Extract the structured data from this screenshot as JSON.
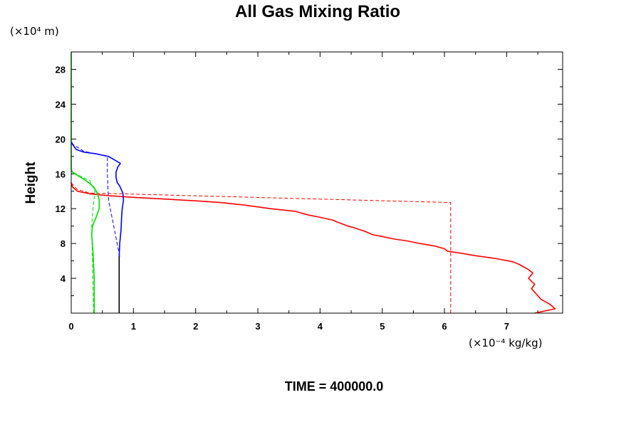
{
  "chart_data": {
    "type": "line",
    "title": "All Gas Mixing Ratio",
    "ylabel": "Height",
    "xlabel": "",
    "y_unit": "(×10⁴ m)",
    "x_unit": "(×10⁻⁴ kg/kg)",
    "footer": "TIME = 400000.0",
    "xlim": [
      0,
      7.9
    ],
    "ylim": [
      0,
      30
    ],
    "x_ticks": [
      0,
      1,
      2,
      3,
      4,
      5,
      6,
      7
    ],
    "x_tick_labels": [
      "0",
      "1",
      "2",
      "3",
      "4",
      "5",
      "6",
      "7"
    ],
    "y_ticks": [
      4,
      8,
      12,
      16,
      20,
      24,
      28
    ],
    "y_tick_labels": [
      "4",
      "8",
      "12",
      "16",
      "20",
      "24",
      "28"
    ],
    "grid": false,
    "series": [
      {
        "color": "#ff0000",
        "dash": false,
        "points": [
          [
            7.45,
            0
          ],
          [
            7.78,
            0.5
          ],
          [
            7.7,
            1.0
          ],
          [
            7.55,
            1.6
          ],
          [
            7.5,
            2.0
          ],
          [
            7.45,
            2.4
          ],
          [
            7.4,
            2.8
          ],
          [
            7.45,
            3.3
          ],
          [
            7.35,
            4.0
          ],
          [
            7.42,
            4.6
          ],
          [
            7.35,
            5.0
          ],
          [
            7.2,
            5.6
          ],
          [
            7.1,
            5.9
          ],
          [
            6.8,
            6.3
          ],
          [
            6.5,
            6.6
          ],
          [
            6.25,
            6.9
          ],
          [
            6.05,
            7.1
          ],
          [
            6.0,
            7.4
          ],
          [
            5.85,
            7.7
          ],
          [
            5.6,
            8.0
          ],
          [
            5.4,
            8.3
          ],
          [
            5.2,
            8.5
          ],
          [
            5.0,
            8.8
          ],
          [
            4.85,
            9.0
          ],
          [
            4.72,
            9.4
          ],
          [
            4.55,
            9.8
          ],
          [
            4.45,
            10.0
          ],
          [
            4.3,
            10.4
          ],
          [
            4.2,
            10.7
          ],
          [
            4.0,
            11.0
          ],
          [
            3.8,
            11.3
          ],
          [
            3.6,
            11.7
          ],
          [
            3.2,
            12.0
          ],
          [
            2.8,
            12.4
          ],
          [
            2.4,
            12.7
          ],
          [
            2.0,
            12.9
          ],
          [
            1.5,
            13.1
          ],
          [
            1.0,
            13.3
          ],
          [
            0.6,
            13.5
          ],
          [
            0.3,
            13.7
          ],
          [
            0.1,
            14.0
          ],
          [
            0.02,
            14.5
          ],
          [
            0,
            15.0
          ]
        ]
      },
      {
        "color": "#ff0000",
        "dash": true,
        "points": [
          [
            6.1,
            0
          ],
          [
            6.1,
            12.7
          ],
          [
            0.3,
            13.8
          ],
          [
            0.1,
            14.2
          ],
          [
            0.02,
            14.8
          ],
          [
            0,
            15.0
          ]
        ]
      },
      {
        "color": "#0000ff",
        "dash": false,
        "points": [
          [
            0.77,
            6.5
          ],
          [
            0.78,
            8.0
          ],
          [
            0.8,
            9.5
          ],
          [
            0.81,
            11.0
          ],
          [
            0.82,
            12.0
          ],
          [
            0.84,
            13.0
          ],
          [
            0.83,
            13.8
          ],
          [
            0.78,
            14.6
          ],
          [
            0.74,
            15.0
          ],
          [
            0.72,
            15.6
          ],
          [
            0.72,
            16.2
          ],
          [
            0.75,
            16.8
          ],
          [
            0.79,
            17.2
          ],
          [
            0.72,
            17.5
          ],
          [
            0.6,
            18.0
          ],
          [
            0.4,
            18.3
          ],
          [
            0.2,
            18.5
          ],
          [
            0.08,
            18.8
          ],
          [
            0.03,
            19.3
          ],
          [
            0,
            19.7
          ]
        ]
      },
      {
        "color": "#0000ff",
        "dash": true,
        "points": [
          [
            0.78,
            6.5
          ],
          [
            0.6,
            13.0
          ],
          [
            0.58,
            16.0
          ],
          [
            0.58,
            18.0
          ],
          [
            0.2,
            18.6
          ],
          [
            0,
            19.5
          ]
        ]
      },
      {
        "color": "#000000",
        "dash": false,
        "points": [
          [
            0.77,
            0
          ],
          [
            0.77,
            6.5
          ]
        ]
      },
      {
        "color": "#00dd00",
        "dash": false,
        "points": [
          [
            0.37,
            0
          ],
          [
            0.37,
            4.0
          ],
          [
            0.35,
            7.0
          ],
          [
            0.33,
            9.0
          ],
          [
            0.34,
            10.0
          ],
          [
            0.4,
            11.0
          ],
          [
            0.45,
            12.0
          ],
          [
            0.45,
            13.0
          ],
          [
            0.42,
            13.8
          ],
          [
            0.36,
            14.5
          ],
          [
            0.28,
            15.0
          ],
          [
            0.18,
            15.5
          ],
          [
            0.08,
            15.9
          ],
          [
            0.02,
            16.2
          ],
          [
            0,
            16.5
          ]
        ]
      },
      {
        "color": "#00dd00",
        "dash": true,
        "points": [
          [
            0.36,
            0
          ],
          [
            0.33,
            10.0
          ],
          [
            0.35,
            12.0
          ],
          [
            0.38,
            14.0
          ],
          [
            0.3,
            15.2
          ],
          [
            0.1,
            15.9
          ],
          [
            0,
            16.3
          ]
        ]
      },
      {
        "color": "#00dd00",
        "dash": false,
        "points": [
          [
            0,
            16.5
          ],
          [
            0,
            30
          ]
        ]
      }
    ]
  }
}
